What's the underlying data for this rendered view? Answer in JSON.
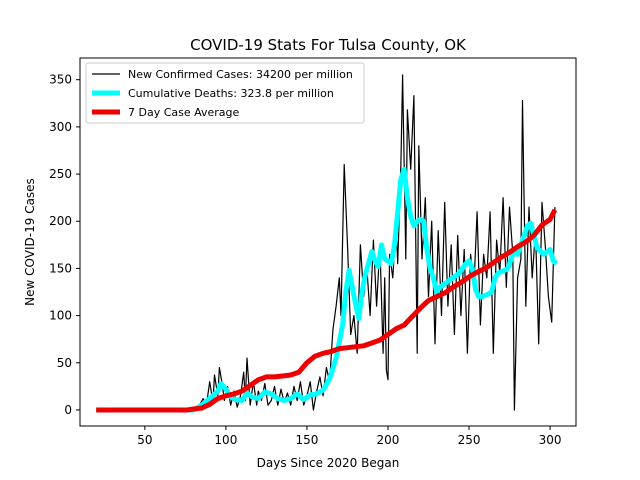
{
  "chart_data": {
    "type": "line",
    "title": "COVID-19 Stats For Tulsa County, OK",
    "xlabel": "Days Since 2020 Began",
    "ylabel": "New COVID-19 Cases",
    "xlim": [
      10,
      316
    ],
    "ylim": [
      -17,
      373
    ],
    "xticks": [
      50,
      100,
      150,
      200,
      250,
      300
    ],
    "yticks": [
      0,
      50,
      100,
      150,
      200,
      250,
      300,
      350
    ],
    "grid": false,
    "legend_position": "top-left",
    "series": [
      {
        "name": "New Confirmed Cases: 34200 per million",
        "color": "#000000",
        "points": [
          [
            20,
            0
          ],
          [
            40,
            0
          ],
          [
            60,
            0
          ],
          [
            75,
            0
          ],
          [
            80,
            1
          ],
          [
            83,
            3
          ],
          [
            86,
            12
          ],
          [
            88,
            5
          ],
          [
            90,
            30
          ],
          [
            92,
            8
          ],
          [
            93,
            37
          ],
          [
            95,
            15
          ],
          [
            96,
            45
          ],
          [
            98,
            25
          ],
          [
            99,
            10
          ],
          [
            101,
            25
          ],
          [
            103,
            5
          ],
          [
            105,
            20
          ],
          [
            107,
            3
          ],
          [
            109,
            15
          ],
          [
            111,
            40
          ],
          [
            112,
            10
          ],
          [
            113,
            55
          ],
          [
            115,
            5
          ],
          [
            117,
            30
          ],
          [
            119,
            5
          ],
          [
            120,
            20
          ],
          [
            122,
            10
          ],
          [
            124,
            28
          ],
          [
            126,
            5
          ],
          [
            128,
            10
          ],
          [
            130,
            25
          ],
          [
            132,
            5
          ],
          [
            134,
            22
          ],
          [
            136,
            8
          ],
          [
            138,
            18
          ],
          [
            140,
            5
          ],
          [
            142,
            25
          ],
          [
            144,
            10
          ],
          [
            146,
            30
          ],
          [
            148,
            5
          ],
          [
            150,
            15
          ],
          [
            152,
            30
          ],
          [
            154,
            0
          ],
          [
            156,
            20
          ],
          [
            158,
            35
          ],
          [
            160,
            15
          ],
          [
            162,
            45
          ],
          [
            164,
            30
          ],
          [
            166,
            85
          ],
          [
            168,
            110
          ],
          [
            170,
            140
          ],
          [
            171,
            100
          ],
          [
            173,
            260
          ],
          [
            175,
            175
          ],
          [
            177,
            80
          ],
          [
            179,
            100
          ],
          [
            181,
            60
          ],
          [
            183,
            175
          ],
          [
            185,
            120
          ],
          [
            187,
            150
          ],
          [
            189,
            100
          ],
          [
            191,
            180
          ],
          [
            193,
            110
          ],
          [
            195,
            175
          ],
          [
            197,
            60
          ],
          [
            198,
            140
          ],
          [
            199,
            42
          ],
          [
            200,
            32
          ],
          [
            201,
            165
          ],
          [
            203,
            140
          ],
          [
            205,
            200
          ],
          [
            206,
            155
          ],
          [
            208,
            260
          ],
          [
            209,
            355
          ],
          [
            211,
            160
          ],
          [
            212,
            318
          ],
          [
            214,
            255
          ],
          [
            216,
            333
          ],
          [
            218,
            60
          ],
          [
            219,
            280
          ],
          [
            221,
            160
          ],
          [
            223,
            225
          ],
          [
            225,
            120
          ],
          [
            227,
            200
          ],
          [
            229,
            70
          ],
          [
            231,
            190
          ],
          [
            233,
            100
          ],
          [
            235,
            220
          ],
          [
            237,
            110
          ],
          [
            239,
            175
          ],
          [
            241,
            80
          ],
          [
            243,
            185
          ],
          [
            245,
            100
          ],
          [
            247,
            170
          ],
          [
            249,
            60
          ],
          [
            251,
            165
          ],
          [
            253,
            130
          ],
          [
            255,
            210
          ],
          [
            257,
            90
          ],
          [
            259,
            165
          ],
          [
            261,
            140
          ],
          [
            263,
            210
          ],
          [
            265,
            60
          ],
          [
            267,
            180
          ],
          [
            269,
            145
          ],
          [
            271,
            225
          ],
          [
            273,
            130
          ],
          [
            275,
            215
          ],
          [
            277,
            165
          ],
          [
            278,
            0
          ],
          [
            280,
            140
          ],
          [
            282,
            160
          ],
          [
            283,
            328
          ],
          [
            285,
            110
          ],
          [
            287,
            215
          ],
          [
            289,
            140
          ],
          [
            291,
            190
          ],
          [
            293,
            70
          ],
          [
            295,
            220
          ],
          [
            297,
            175
          ],
          [
            299,
            120
          ],
          [
            301,
            93
          ],
          [
            303,
            215
          ]
        ]
      },
      {
        "name": "Cumulative Deaths: 323.8 per million",
        "color": "#00ffff",
        "points": [
          [
            20,
            0
          ],
          [
            40,
            0
          ],
          [
            60,
            0
          ],
          [
            75,
            0
          ],
          [
            80,
            0
          ],
          [
            85,
            5
          ],
          [
            90,
            12
          ],
          [
            95,
            20
          ],
          [
            97,
            28
          ],
          [
            100,
            22
          ],
          [
            103,
            14
          ],
          [
            106,
            11
          ],
          [
            110,
            10
          ],
          [
            113,
            18
          ],
          [
            116,
            14
          ],
          [
            120,
            12
          ],
          [
            124,
            19
          ],
          [
            128,
            17
          ],
          [
            132,
            12
          ],
          [
            136,
            10
          ],
          [
            140,
            12
          ],
          [
            144,
            17
          ],
          [
            148,
            11
          ],
          [
            152,
            16
          ],
          [
            156,
            17
          ],
          [
            160,
            21
          ],
          [
            164,
            33
          ],
          [
            168,
            55
          ],
          [
            172,
            90
          ],
          [
            174,
            125
          ],
          [
            176,
            148
          ],
          [
            178,
            130
          ],
          [
            180,
            112
          ],
          [
            182,
            97
          ],
          [
            184,
            125
          ],
          [
            186,
            143
          ],
          [
            188,
            155
          ],
          [
            190,
            168
          ],
          [
            192,
            158
          ],
          [
            194,
            152
          ],
          [
            196,
            175
          ],
          [
            198,
            160
          ],
          [
            200,
            158
          ],
          [
            202,
            155
          ],
          [
            204,
            175
          ],
          [
            206,
            210
          ],
          [
            208,
            245
          ],
          [
            210,
            255
          ],
          [
            212,
            225
          ],
          [
            214,
            205
          ],
          [
            216,
            195
          ],
          [
            218,
            200
          ],
          [
            220,
            202
          ],
          [
            222,
            200
          ],
          [
            224,
            170
          ],
          [
            226,
            150
          ],
          [
            228,
            140
          ],
          [
            230,
            125
          ],
          [
            232,
            130
          ],
          [
            236,
            135
          ],
          [
            240,
            140
          ],
          [
            244,
            145
          ],
          [
            248,
            155
          ],
          [
            250,
            158
          ],
          [
            252,
            150
          ],
          [
            254,
            128
          ],
          [
            256,
            120
          ],
          [
            258,
            120
          ],
          [
            262,
            123
          ],
          [
            264,
            125
          ],
          [
            266,
            140
          ],
          [
            268,
            145
          ],
          [
            272,
            148
          ],
          [
            274,
            150
          ],
          [
            276,
            160
          ],
          [
            278,
            170
          ],
          [
            280,
            165
          ],
          [
            284,
            185
          ],
          [
            286,
            195
          ],
          [
            288,
            198
          ],
          [
            290,
            185
          ],
          [
            292,
            172
          ],
          [
            296,
            165
          ],
          [
            300,
            170
          ],
          [
            302,
            158
          ],
          [
            304,
            155
          ]
        ]
      },
      {
        "name": "7 Day Case Average",
        "color": "#ee0000",
        "points": [
          [
            20,
            0
          ],
          [
            40,
            0
          ],
          [
            60,
            0
          ],
          [
            76,
            0
          ],
          [
            80,
            1
          ],
          [
            85,
            2
          ],
          [
            90,
            6
          ],
          [
            95,
            12
          ],
          [
            100,
            15
          ],
          [
            105,
            17
          ],
          [
            110,
            20
          ],
          [
            115,
            26
          ],
          [
            120,
            32
          ],
          [
            125,
            35
          ],
          [
            130,
            35
          ],
          [
            135,
            36
          ],
          [
            140,
            37
          ],
          [
            145,
            40
          ],
          [
            150,
            50
          ],
          [
            155,
            57
          ],
          [
            160,
            60
          ],
          [
            165,
            62
          ],
          [
            170,
            65
          ],
          [
            175,
            66
          ],
          [
            180,
            67
          ],
          [
            185,
            68
          ],
          [
            190,
            71
          ],
          [
            195,
            74
          ],
          [
            200,
            80
          ],
          [
            205,
            86
          ],
          [
            210,
            90
          ],
          [
            215,
            99
          ],
          [
            220,
            108
          ],
          [
            225,
            116
          ],
          [
            230,
            120
          ],
          [
            235,
            124
          ],
          [
            240,
            130
          ],
          [
            245,
            135
          ],
          [
            250,
            141
          ],
          [
            255,
            146
          ],
          [
            260,
            150
          ],
          [
            265,
            156
          ],
          [
            270,
            162
          ],
          [
            275,
            167
          ],
          [
            280,
            173
          ],
          [
            285,
            178
          ],
          [
            290,
            185
          ],
          [
            295,
            196
          ],
          [
            300,
            202
          ],
          [
            303,
            212
          ]
        ]
      }
    ]
  }
}
